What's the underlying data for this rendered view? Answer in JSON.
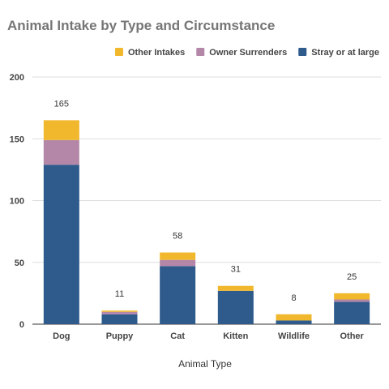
{
  "chart_data": {
    "type": "bar",
    "stacked": true,
    "title": "Animal Intake by Type and Circumstance",
    "xlabel": "Animal Type",
    "ylabel": "",
    "ylim": [
      0,
      200
    ],
    "yticks": [
      0,
      50,
      100,
      150,
      200
    ],
    "grid": true,
    "legend_position": "top-right",
    "categories": [
      "Dog",
      "Puppy",
      "Cat",
      "Kitten",
      "Wildlife",
      "Other"
    ],
    "series": [
      {
        "name": "Stray or at large",
        "color": "#2e5a8c",
        "values": [
          129,
          8,
          47,
          27,
          3,
          18
        ]
      },
      {
        "name": "Owner Surrenders",
        "color": "#b487a8",
        "values": [
          20,
          2,
          5,
          0,
          0,
          2
        ]
      },
      {
        "name": "Other Intakes",
        "color": "#f1b82d",
        "values": [
          16,
          1,
          6,
          4,
          5,
          5
        ]
      }
    ],
    "totals": [
      "165",
      "11",
      "58",
      "31",
      "8",
      "25"
    ],
    "legend_order": [
      "Other Intakes",
      "Owner Surrenders",
      "Stray or at large"
    ]
  }
}
